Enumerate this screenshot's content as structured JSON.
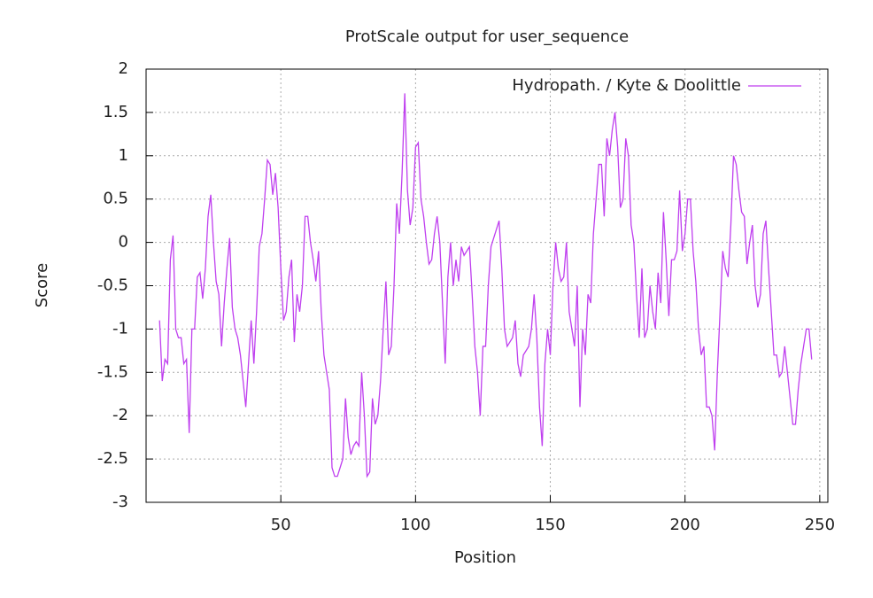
{
  "chart_data": {
    "type": "line",
    "title": "ProtScale output for user_sequence",
    "x_label": "Position",
    "y_label": "Score",
    "xlim": [
      0,
      253
    ],
    "ylim": [
      -3,
      2
    ],
    "xticks": [
      50,
      100,
      150,
      200,
      250
    ],
    "yticks": [
      2,
      1.5,
      1,
      0.5,
      0,
      -0.5,
      -1,
      -1.5,
      -2,
      -2.5,
      -3
    ],
    "grid": true,
    "legend": "top-right",
    "x": [
      5,
      6,
      7,
      8,
      9,
      10,
      11,
      12,
      13,
      14,
      15,
      16,
      17,
      18,
      19,
      20,
      21,
      22,
      23,
      24,
      25,
      26,
      27,
      28,
      29,
      30,
      31,
      32,
      33,
      34,
      35,
      36,
      37,
      38,
      39,
      40,
      41,
      42,
      43,
      44,
      45,
      46,
      47,
      48,
      49,
      50,
      51,
      52,
      53,
      54,
      55,
      56,
      57,
      58,
      59,
      60,
      61,
      62,
      63,
      64,
      65,
      66,
      67,
      68,
      69,
      70,
      71,
      72,
      73,
      74,
      75,
      76,
      77,
      78,
      79,
      80,
      81,
      82,
      83,
      84,
      85,
      86,
      87,
      88,
      89,
      90,
      91,
      92,
      93,
      94,
      95,
      96,
      97,
      98,
      99,
      100,
      101,
      102,
      103,
      104,
      105,
      106,
      107,
      108,
      109,
      110,
      111,
      112,
      113,
      114,
      115,
      116,
      117,
      118,
      119,
      120,
      121,
      122,
      123,
      124,
      125,
      126,
      127,
      128,
      129,
      130,
      131,
      132,
      133,
      134,
      135,
      136,
      137,
      138,
      139,
      140,
      141,
      142,
      143,
      144,
      145,
      146,
      147,
      148,
      149,
      150,
      151,
      152,
      153,
      154,
      155,
      156,
      157,
      158,
      159,
      160,
      161,
      162,
      163,
      164,
      165,
      166,
      167,
      168,
      169,
      170,
      171,
      172,
      173,
      174,
      175,
      176,
      177,
      178,
      179,
      180,
      181,
      182,
      183,
      184,
      185,
      186,
      187,
      188,
      189,
      190,
      191,
      192,
      193,
      194,
      195,
      196,
      197,
      198,
      199,
      200,
      201,
      202,
      203,
      204,
      205,
      206,
      207,
      208,
      209,
      210,
      211,
      212,
      213,
      214,
      215,
      216,
      217,
      218,
      219,
      220,
      221,
      222,
      223,
      224,
      225,
      226,
      227,
      228,
      229,
      230,
      231,
      232,
      233,
      234,
      235,
      236,
      237,
      238,
      239,
      240,
      241,
      242,
      243,
      244,
      245,
      246,
      247
    ],
    "series": [
      {
        "name": "Hydropath. / Kyte & Doolittle",
        "color": "#bf3fef",
        "values": [
          -0.9,
          -1.6,
          -1.35,
          -1.4,
          -0.2,
          0.08,
          -1.0,
          -1.1,
          -1.1,
          -1.4,
          -1.35,
          -2.2,
          -1.0,
          -1.0,
          -0.4,
          -0.35,
          -0.65,
          -0.3,
          0.3,
          0.55,
          0.0,
          -0.45,
          -0.6,
          -1.2,
          -0.7,
          -0.3,
          0.05,
          -0.75,
          -1.0,
          -1.1,
          -1.3,
          -1.6,
          -1.9,
          -1.4,
          -0.9,
          -1.4,
          -0.8,
          -0.05,
          0.1,
          0.5,
          0.95,
          0.9,
          0.55,
          0.8,
          0.4,
          -0.3,
          -0.9,
          -0.8,
          -0.4,
          -0.2,
          -1.15,
          -0.6,
          -0.8,
          -0.5,
          0.3,
          0.3,
          0.0,
          -0.2,
          -0.45,
          -0.1,
          -0.8,
          -1.3,
          -1.5,
          -1.7,
          -2.6,
          -2.7,
          -2.7,
          -2.6,
          -2.5,
          -1.8,
          -2.25,
          -2.45,
          -2.35,
          -2.3,
          -2.35,
          -1.5,
          -2.0,
          -2.7,
          -2.65,
          -1.8,
          -2.1,
          -2.0,
          -1.6,
          -1.0,
          -0.45,
          -1.3,
          -1.2,
          -0.5,
          0.45,
          0.1,
          0.8,
          1.72,
          0.6,
          0.2,
          0.4,
          1.1,
          1.15,
          0.5,
          0.3,
          0.0,
          -0.25,
          -0.2,
          0.1,
          0.3,
          0.0,
          -0.7,
          -1.4,
          -0.4,
          0.0,
          -0.5,
          -0.2,
          -0.45,
          -0.05,
          -0.15,
          -0.1,
          -0.05,
          -0.6,
          -1.2,
          -1.5,
          -2.0,
          -1.2,
          -1.2,
          -0.5,
          -0.05,
          0.05,
          0.15,
          0.25,
          -0.3,
          -1.0,
          -1.2,
          -1.15,
          -1.1,
          -0.9,
          -1.4,
          -1.55,
          -1.3,
          -1.25,
          -1.2,
          -1.0,
          -0.6,
          -1.1,
          -1.9,
          -2.35,
          -1.4,
          -1.0,
          -1.3,
          -0.5,
          0.0,
          -0.3,
          -0.45,
          -0.4,
          0.0,
          -0.8,
          -1.0,
          -1.2,
          -0.5,
          -1.9,
          -1.0,
          -1.3,
          -0.6,
          -0.7,
          0.1,
          0.5,
          0.9,
          0.9,
          0.3,
          1.2,
          1.0,
          1.3,
          1.5,
          1.1,
          0.4,
          0.5,
          1.2,
          1.0,
          0.2,
          0.0,
          -0.6,
          -1.1,
          -0.3,
          -1.1,
          -1.0,
          -0.5,
          -0.8,
          -1.0,
          -0.35,
          -0.7,
          0.35,
          -0.2,
          -0.85,
          -0.2,
          -0.2,
          -0.1,
          0.6,
          -0.1,
          0.1,
          0.5,
          0.5,
          -0.1,
          -0.45,
          -1.0,
          -1.3,
          -1.2,
          -1.9,
          -1.9,
          -2.0,
          -2.4,
          -1.5,
          -0.8,
          -0.1,
          -0.3,
          -0.4,
          0.2,
          1.0,
          0.9,
          0.6,
          0.35,
          0.3,
          -0.25,
          0.0,
          0.2,
          -0.5,
          -0.75,
          -0.6,
          0.1,
          0.25,
          -0.3,
          -0.8,
          -1.3,
          -1.3,
          -1.55,
          -1.5,
          -1.2,
          -1.5,
          -1.8,
          -2.1,
          -2.1,
          -1.7,
          -1.4,
          -1.2,
          -1.0,
          -1.0,
          -1.35
        ]
      }
    ]
  }
}
